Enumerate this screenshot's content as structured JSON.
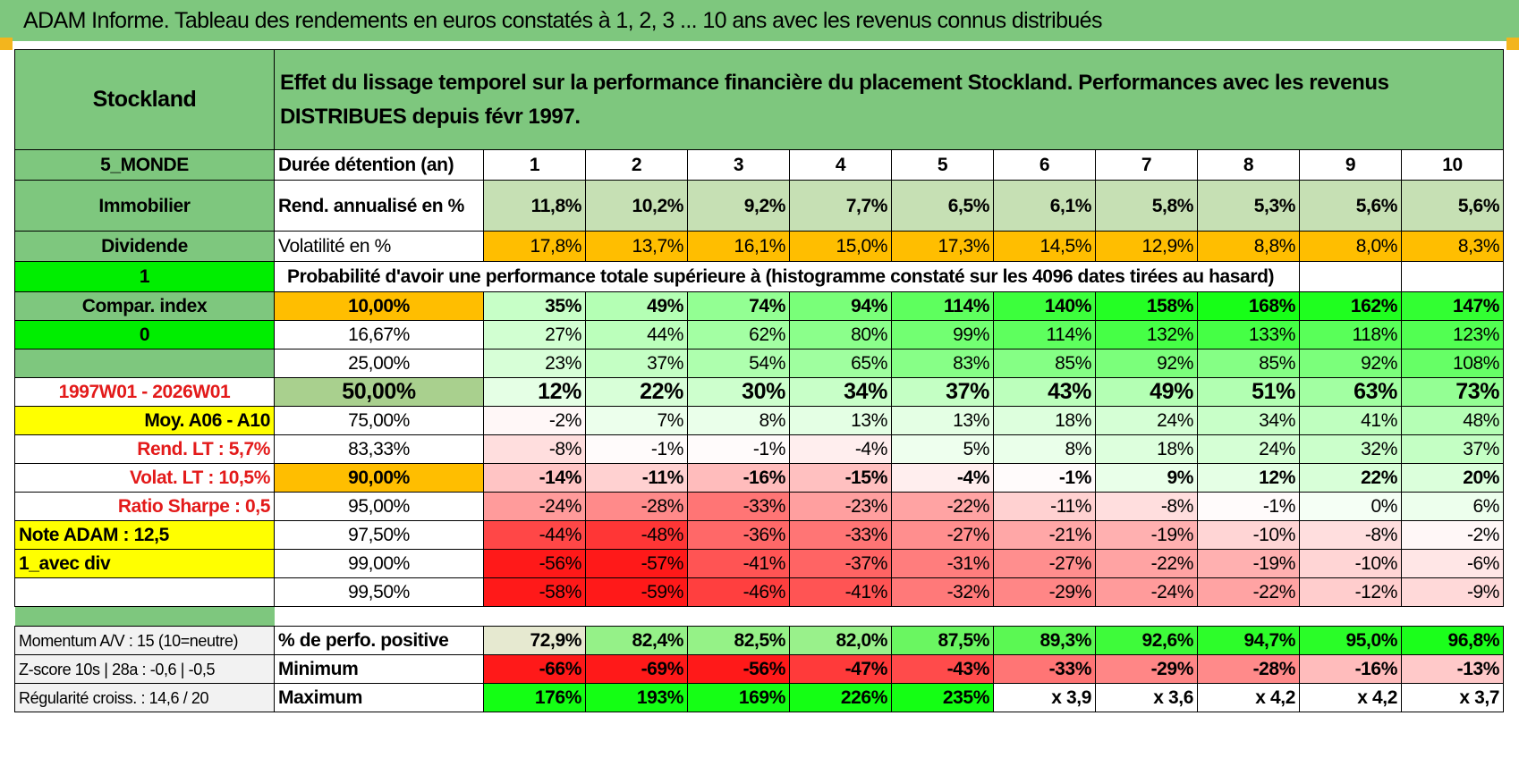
{
  "page_title": "ADAM Informe. Tableau des rendements en euros constatés à 1, 2, 3 ... 10 ans avec les revenus connus distribués",
  "left": {
    "name": "Stockland",
    "zone": "5_MONDE",
    "sector": "Immobilier",
    "type": "Dividende",
    "flag1": "1",
    "compar": "Compar. index",
    "flag0": "0",
    "period": "1997W01 - 2026W01",
    "moy": "Moy. A06 - A10",
    "rend_lt": "Rend. LT :   5,7%",
    "volat_lt": "Volat. LT :   10,5%",
    "sharpe": "Ratio Sharpe :    0,5",
    "note": "Note ADAM : 12,5",
    "mode": "1_avec div"
  },
  "header_text": "Effet du lissage temporel sur la performance financière du placement Stockland. Performances avec les revenus DISTRIBUES depuis févr 1997.",
  "labels": {
    "duree": "Durée détention (an)",
    "rend": "Rend. annualisé en %",
    "vol": "Volatilité en %",
    "prob": "Probabilité d'avoir une performance totale supérieure à (histogramme constaté sur les 4096 dates tirées au hasard)"
  },
  "years": [
    "1",
    "2",
    "3",
    "4",
    "5",
    "6",
    "7",
    "8",
    "9",
    "10"
  ],
  "rend": [
    "11,8%",
    "10,2%",
    "9,2%",
    "7,7%",
    "6,5%",
    "6,1%",
    "5,8%",
    "5,3%",
    "5,6%",
    "5,6%"
  ],
  "vol": [
    "17,8%",
    "13,7%",
    "16,1%",
    "15,0%",
    "17,3%",
    "14,5%",
    "12,9%",
    "8,8%",
    "8,0%",
    "8,3%"
  ],
  "prob_rows": [
    {
      "p": "10,00%",
      "v": [
        "35%",
        "49%",
        "74%",
        "94%",
        "114%",
        "140%",
        "158%",
        "168%",
        "162%",
        "147%"
      ]
    },
    {
      "p": "16,67%",
      "v": [
        "27%",
        "44%",
        "62%",
        "80%",
        "99%",
        "114%",
        "132%",
        "133%",
        "118%",
        "123%"
      ]
    },
    {
      "p": "25,00%",
      "v": [
        "23%",
        "37%",
        "54%",
        "65%",
        "83%",
        "85%",
        "92%",
        "85%",
        "92%",
        "108%"
      ]
    },
    {
      "p": "50,00%",
      "v": [
        "12%",
        "22%",
        "30%",
        "34%",
        "37%",
        "43%",
        "49%",
        "51%",
        "63%",
        "73%"
      ]
    },
    {
      "p": "75,00%",
      "v": [
        "-2%",
        "7%",
        "8%",
        "13%",
        "13%",
        "18%",
        "24%",
        "34%",
        "41%",
        "48%"
      ]
    },
    {
      "p": "83,33%",
      "v": [
        "-8%",
        "-1%",
        "-1%",
        "-4%",
        "5%",
        "8%",
        "18%",
        "24%",
        "32%",
        "37%"
      ]
    },
    {
      "p": "90,00%",
      "v": [
        "-14%",
        "-11%",
        "-16%",
        "-15%",
        "-4%",
        "-1%",
        "9%",
        "12%",
        "22%",
        "20%"
      ]
    },
    {
      "p": "95,00%",
      "v": [
        "-24%",
        "-28%",
        "-33%",
        "-23%",
        "-22%",
        "-11%",
        "-8%",
        "-1%",
        "0%",
        "6%"
      ]
    },
    {
      "p": "97,50%",
      "v": [
        "-44%",
        "-48%",
        "-36%",
        "-33%",
        "-27%",
        "-21%",
        "-19%",
        "-10%",
        "-8%",
        "-2%"
      ]
    },
    {
      "p": "99,00%",
      "v": [
        "-56%",
        "-57%",
        "-41%",
        "-37%",
        "-31%",
        "-27%",
        "-22%",
        "-19%",
        "-10%",
        "-6%"
      ]
    },
    {
      "p": "99,50%",
      "v": [
        "-58%",
        "-59%",
        "-46%",
        "-41%",
        "-32%",
        "-29%",
        "-24%",
        "-22%",
        "-12%",
        "-9%"
      ]
    }
  ],
  "bottom": {
    "momentum": "Momentum A/V : 15 (10=neutre)",
    "zscore": "Z-score 10s | 28a : -0,6 | -0,5",
    "regul": "Régularité croiss. : 14,6 / 20",
    "pos_label": "% de perfo. positive",
    "min_label": "Minimum",
    "max_label": "Maximum",
    "pos": [
      "72,9%",
      "82,4%",
      "82,5%",
      "82,0%",
      "87,5%",
      "89,3%",
      "92,6%",
      "94,7%",
      "95,0%",
      "96,8%"
    ],
    "min": [
      "-66%",
      "-69%",
      "-56%",
      "-47%",
      "-43%",
      "-33%",
      "-29%",
      "-28%",
      "-16%",
      "-13%"
    ],
    "max": [
      "176%",
      "193%",
      "169%",
      "226%",
      "235%",
      "x 3,9",
      "x 3,6",
      "x 4,2",
      "x 4,2",
      "x 3,7"
    ]
  },
  "colors": {
    "green_header": "#7ec77e",
    "bright_green": "#00ee00",
    "yellow": "#ffff00",
    "orange": "#ffbe00",
    "red_text": "#e31a1a"
  }
}
